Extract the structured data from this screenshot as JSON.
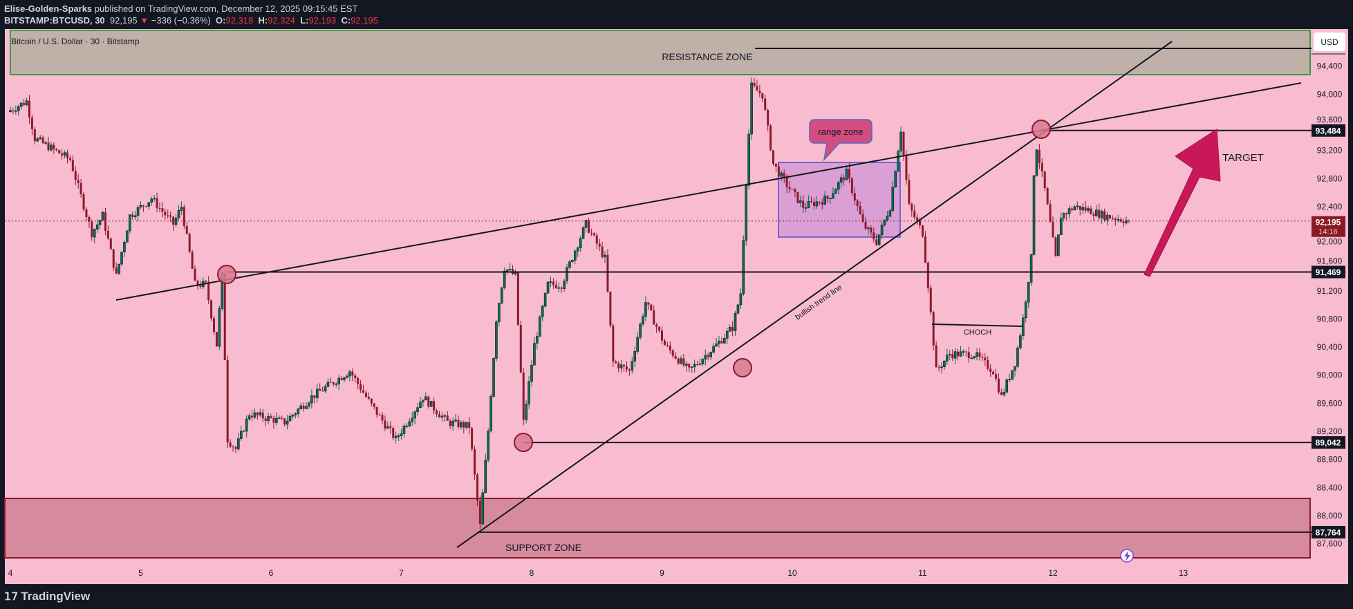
{
  "header": {
    "author": "Elise-Golden-Sparks",
    "published": "published on TradingView.com, December 12, 2025 09:15:45 EST",
    "symbol": "BITSTAMP:BTCUSD, 30",
    "last": "92,195",
    "change": "−336 (−0.36%)",
    "change_icon": "triangle-down-icon",
    "o_label": "O:",
    "o": "92,318",
    "h_label": "H:",
    "h": "92,324",
    "l_label": "L:",
    "l": "92,193",
    "c_label": "C:",
    "c": "92,195"
  },
  "chart_title": "Bitcoin / U.S. Dollar · 30 · Bitstamp",
  "currency_button": "USD",
  "annotations": {
    "resistance": "RESISTANCE ZONE",
    "support": "SUPPORT ZONE",
    "range": "range zone",
    "trend": "bullish trend line",
    "choch": "CHOCH",
    "target": "TARGET"
  },
  "price_labels": {
    "l93484": "93,484",
    "l91469": "91,469",
    "l89042": "89,042",
    "l87764": "87,764",
    "current": "92,195",
    "countdown": "14:16"
  },
  "footer": {
    "logo": "TradingView"
  },
  "colors": {
    "background": "#f8bbd0",
    "up_candle": "#0b6b55",
    "down_candle": "#8b1a2b",
    "resistance_zone": "#bfb0a8",
    "support_zone": "#d68a9e",
    "range_box": "#d59ad6",
    "callout": "#d44d80",
    "target_arrow": "#c8185a"
  },
  "chart_data": {
    "type": "candlestick",
    "interval": "30",
    "currency": "USD",
    "x_ticks": [
      "4",
      "5",
      "6",
      "7",
      "8",
      "9",
      "10",
      "11",
      "12",
      "13"
    ],
    "y_ticks": [
      "94,400",
      "94,000",
      "93,600",
      "93,200",
      "92,800",
      "92,400",
      "92,000",
      "91,600",
      "91,200",
      "90,800",
      "90,400",
      "90,000",
      "89,600",
      "89,200",
      "88,800",
      "88,400",
      "88,000",
      "87,600"
    ],
    "ylim": [
      87300,
      94800
    ],
    "grid": false,
    "price_path": [
      {
        "t": "2025-12-03T23:30",
        "p": 93750
      },
      {
        "t": "2025-12-04T03:00",
        "p": 93900
      },
      {
        "t": "2025-12-04T04:30",
        "p": 93370
      },
      {
        "t": "2025-12-04T11:00",
        "p": 93070
      },
      {
        "t": "2025-12-04T15:00",
        "p": 92025
      },
      {
        "t": "2025-12-04T17:00",
        "p": 92270
      },
      {
        "t": "2025-12-04T19:30",
        "p": 91410
      },
      {
        "t": "2025-12-04T22:00",
        "p": 92270
      },
      {
        "t": "2025-12-05T02:00",
        "p": 92515
      },
      {
        "t": "2025-12-05T06:00",
        "p": 92150
      },
      {
        "t": "2025-12-05T07:30",
        "p": 92400
      },
      {
        "t": "2025-12-05T10:00",
        "p": 91290
      },
      {
        "t": "2025-12-05T12:00",
        "p": 91290
      },
      {
        "t": "2025-12-05T14:00",
        "p": 90430
      },
      {
        "t": "2025-12-05T15:00",
        "p": 91410
      },
      {
        "t": "2025-12-05T16:00",
        "p": 89085
      },
      {
        "t": "2025-12-05T17:30",
        "p": 88950
      },
      {
        "t": "2025-12-05T20:00",
        "p": 89450
      },
      {
        "t": "2025-12-06T02:30",
        "p": 89330
      },
      {
        "t": "2025-12-06T07:30",
        "p": 89690
      },
      {
        "t": "2025-12-06T14:30",
        "p": 90060
      },
      {
        "t": "2025-12-06T18:30",
        "p": 89570
      },
      {
        "t": "2025-12-06T23:00",
        "p": 89085
      },
      {
        "t": "2025-12-07T04:00",
        "p": 89690
      },
      {
        "t": "2025-12-07T08:30",
        "p": 89330
      },
      {
        "t": "2025-12-07T12:30",
        "p": 89270
      },
      {
        "t": "2025-12-07T14:30",
        "p": 87850
      },
      {
        "t": "2025-12-07T16:00",
        "p": 89210
      },
      {
        "t": "2025-12-07T17:30",
        "p": 90800
      },
      {
        "t": "2025-12-07T19:00",
        "p": 91530
      },
      {
        "t": "2025-12-07T21:00",
        "p": 91410
      },
      {
        "t": "2025-12-07T22:30",
        "p": 89330
      },
      {
        "t": "2025-12-08T00:30",
        "p": 90430
      },
      {
        "t": "2025-12-08T03:00",
        "p": 91290
      },
      {
        "t": "2025-12-08T05:30",
        "p": 91290
      },
      {
        "t": "2025-12-08T08:00",
        "p": 91780
      },
      {
        "t": "2025-12-08T10:00",
        "p": 92150
      },
      {
        "t": "2025-12-08T13:30",
        "p": 91660
      },
      {
        "t": "2025-12-08T15:00",
        "p": 90185
      },
      {
        "t": "2025-12-08T18:00",
        "p": 90060
      },
      {
        "t": "2025-12-08T21:00",
        "p": 91040
      },
      {
        "t": "2025-12-09T00:30",
        "p": 90430
      },
      {
        "t": "2025-12-09T05:00",
        "p": 90060
      },
      {
        "t": "2025-12-09T10:00",
        "p": 90430
      },
      {
        "t": "2025-12-09T13:00",
        "p": 90680
      },
      {
        "t": "2025-12-09T14:30",
        "p": 91170
      },
      {
        "t": "2025-12-09T15:30",
        "p": 92760
      },
      {
        "t": "2025-12-09T16:30",
        "p": 94110
      },
      {
        "t": "2025-12-09T18:30",
        "p": 93990
      },
      {
        "t": "2025-12-09T20:30",
        "p": 93010
      },
      {
        "t": "2025-12-09T22:30",
        "p": 92760
      },
      {
        "t": "2025-12-10T02:00",
        "p": 92400
      },
      {
        "t": "2025-12-10T06:30",
        "p": 92515
      },
      {
        "t": "2025-12-10T10:00",
        "p": 92880
      },
      {
        "t": "2025-12-10T13:00",
        "p": 92150
      },
      {
        "t": "2025-12-10T15:30",
        "p": 91900
      },
      {
        "t": "2025-12-10T18:00",
        "p": 92400
      },
      {
        "t": "2025-12-10T20:00",
        "p": 93500
      },
      {
        "t": "2025-12-10T21:30",
        "p": 92400
      },
      {
        "t": "2025-12-11T00:00",
        "p": 92025
      },
      {
        "t": "2025-12-11T01:00",
        "p": 91290
      },
      {
        "t": "2025-12-11T02:30",
        "p": 90060
      },
      {
        "t": "2025-12-11T05:00",
        "p": 90300
      },
      {
        "t": "2025-12-11T09:30",
        "p": 90300
      },
      {
        "t": "2025-12-11T13:00",
        "p": 90060
      },
      {
        "t": "2025-12-11T14:30",
        "p": 89690
      },
      {
        "t": "2025-12-11T17:00",
        "p": 90180
      },
      {
        "t": "2025-12-11T18:30",
        "p": 90800
      },
      {
        "t": "2025-12-11T20:00",
        "p": 91660
      },
      {
        "t": "2025-12-11T20:30",
        "p": 92880
      },
      {
        "t": "2025-12-11T21:00",
        "p": 93250
      },
      {
        "t": "2025-12-11T22:30",
        "p": 92640
      },
      {
        "t": "2025-12-12T00:30",
        "p": 91660
      },
      {
        "t": "2025-12-12T01:30",
        "p": 92270
      },
      {
        "t": "2025-12-12T04:00",
        "p": 92400
      },
      {
        "t": "2025-12-12T06:30",
        "p": 92350
      },
      {
        "t": "2025-12-12T09:30",
        "p": 92270
      },
      {
        "t": "2025-12-12T14:00",
        "p": 92195
      }
    ],
    "levels": [
      93484,
      91469,
      89042,
      87764
    ],
    "current_price": 92195
  }
}
